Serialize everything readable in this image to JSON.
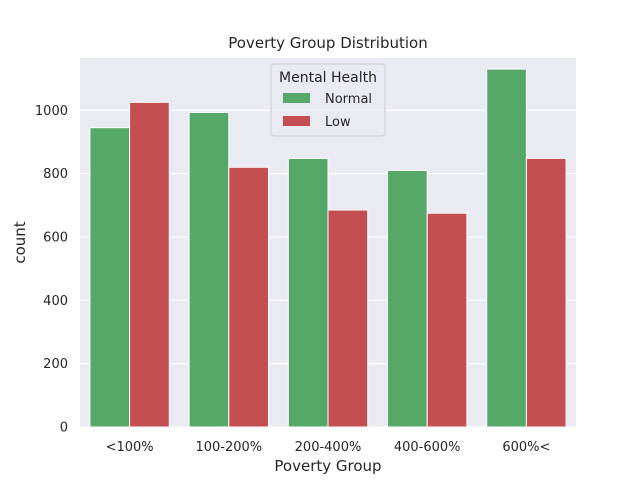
{
  "chart_data": {
    "type": "bar",
    "title": "Poverty Group Distribution",
    "xlabel": "Poverty Group",
    "ylabel": "count",
    "categories": [
      "<100%",
      "100-200%",
      "200-400%",
      "400-600%",
      "600%<"
    ],
    "series": [
      {
        "name": "Normal",
        "color": "#55a868",
        "values": [
          945,
          993,
          848,
          810,
          1130
        ]
      },
      {
        "name": "Low",
        "color": "#c44e52",
        "values": [
          1025,
          820,
          685,
          675,
          848
        ]
      }
    ],
    "ylim": [
      0,
      1165
    ],
    "yticks": [
      0,
      200,
      400,
      600,
      800,
      1000
    ],
    "grid": true,
    "legend": {
      "title": "Mental Health",
      "placement": "top-center"
    },
    "colors": {
      "plot_background": "#eaeaf2",
      "grid": "#ffffff"
    }
  }
}
